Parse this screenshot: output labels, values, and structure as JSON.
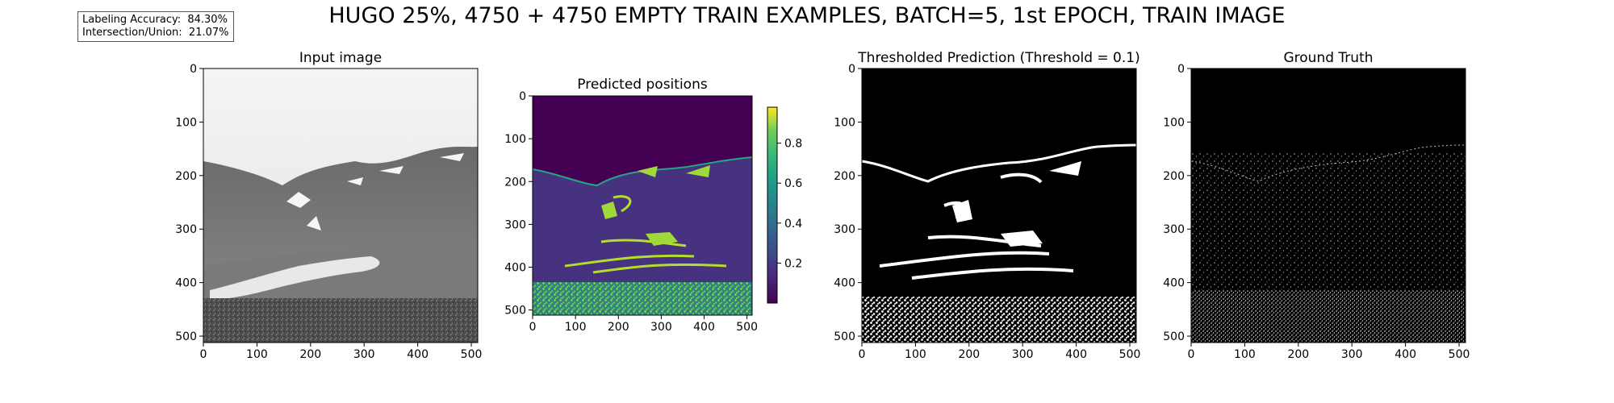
{
  "figure": {
    "suptitle": "HUGO 25%, 4750 + 4750 EMPTY TRAIN EXAMPLES, BATCH=5, 1st EPOCH, TRAIN IMAGE",
    "metrics": {
      "accuracy_label": "Labeling Accuracy:",
      "accuracy_value": "84.30%",
      "iou_label": "Intersection/Union:",
      "iou_value": "21.07%"
    }
  },
  "chart_data": [
    {
      "type": "heatmap",
      "title": "Input image",
      "colormap": "gray",
      "xlim": [
        0,
        512
      ],
      "ylim": [
        512,
        0
      ],
      "xticks": [
        0,
        100,
        200,
        300,
        400,
        500
      ],
      "yticks": [
        0,
        100,
        200,
        300,
        400,
        500
      ]
    },
    {
      "type": "heatmap",
      "title": "Predicted positions",
      "colormap": "viridis",
      "xlim": [
        0,
        512
      ],
      "ylim": [
        512,
        0
      ],
      "xticks": [
        0,
        100,
        200,
        300,
        400,
        500
      ],
      "yticks": [
        0,
        100,
        200,
        300,
        400,
        500
      ],
      "colorbar": {
        "ticks": [
          0.2,
          0.4,
          0.6,
          0.8
        ],
        "range": [
          0,
          0.98
        ]
      }
    },
    {
      "type": "heatmap",
      "title": "Thresholded Prediction (Threshold = 0.1)",
      "colormap": "binary",
      "threshold": 0.1,
      "xlim": [
        0,
        512
      ],
      "ylim": [
        512,
        0
      ],
      "xticks": [
        0,
        100,
        200,
        300,
        400,
        500
      ],
      "yticks": [
        0,
        100,
        200,
        300,
        400,
        500
      ]
    },
    {
      "type": "heatmap",
      "title": "Ground Truth",
      "colormap": "binary",
      "xlim": [
        0,
        512
      ],
      "ylim": [
        512,
        0
      ],
      "xticks": [
        0,
        100,
        200,
        300,
        400,
        500
      ],
      "yticks": [
        0,
        100,
        200,
        300,
        400,
        500
      ]
    }
  ]
}
